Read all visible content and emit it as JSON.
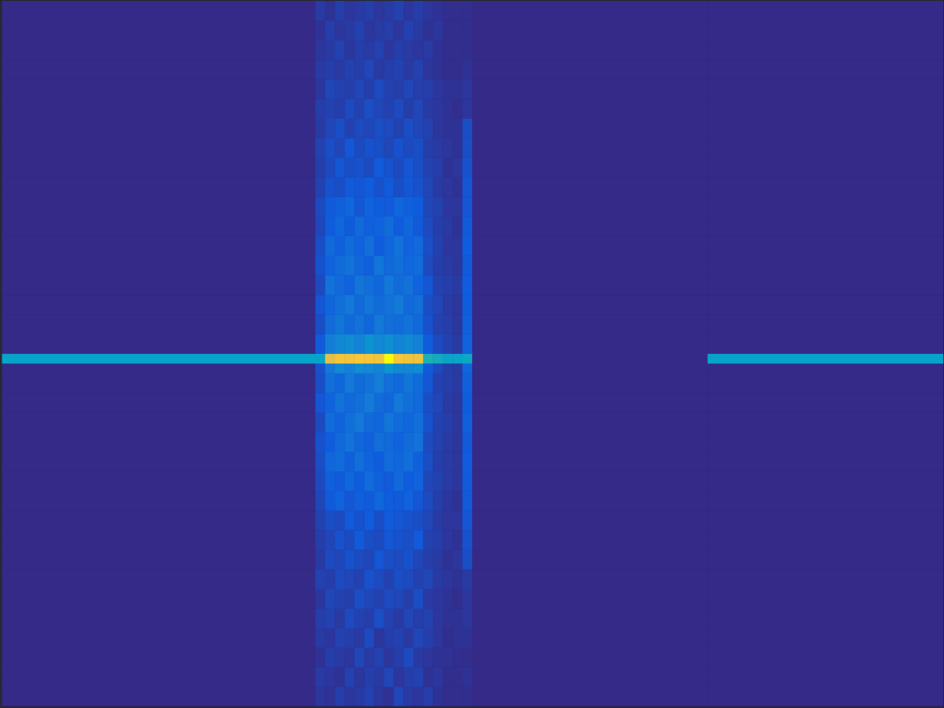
{
  "chart_data": {
    "type": "heatmap",
    "xlim": [
      0,
      96
    ],
    "ylim": [
      0,
      72
    ],
    "tick_labels": false,
    "zlim": [
      0,
      100
    ],
    "x_bins": [
      0,
      32,
      33,
      34,
      35,
      36,
      37,
      38,
      39,
      40,
      41,
      42,
      43,
      44,
      45,
      46,
      47,
      48,
      72,
      96
    ],
    "y_bins": [
      0,
      2,
      4,
      6,
      8,
      10,
      12,
      14,
      16,
      18,
      20,
      22,
      24,
      26,
      28,
      30,
      32,
      34,
      35,
      36,
      38,
      40,
      42,
      44,
      46,
      48,
      50,
      52,
      54,
      56,
      58,
      60,
      62,
      64,
      66,
      68,
      70,
      72
    ],
    "z": [
      [
        0,
        3,
        2,
        5,
        3,
        4,
        6,
        3,
        2,
        7,
        4,
        3,
        5,
        2,
        1,
        1,
        1,
        0,
        0
      ],
      [
        0,
        4,
        3,
        2,
        6,
        3,
        5,
        4,
        7,
        3,
        5,
        6,
        2,
        3,
        1,
        1,
        2,
        0,
        0
      ],
      [
        0,
        2,
        5,
        4,
        3,
        7,
        4,
        6,
        3,
        5,
        8,
        4,
        3,
        2,
        2,
        1,
        1,
        0,
        0
      ],
      [
        0,
        4,
        3,
        6,
        5,
        4,
        8,
        3,
        5,
        6,
        4,
        7,
        5,
        3,
        1,
        2,
        2,
        0,
        0
      ],
      [
        0,
        5,
        6,
        4,
        8,
        6,
        5,
        9,
        6,
        4,
        7,
        5,
        6,
        3,
        2,
        2,
        3,
        0,
        0
      ],
      [
        0,
        3,
        7,
        6,
        5,
        9,
        7,
        6,
        8,
        7,
        5,
        9,
        4,
        3,
        2,
        1,
        3,
        0,
        0
      ],
      [
        0,
        6,
        5,
        8,
        7,
        6,
        10,
        8,
        6,
        9,
        8,
        6,
        7,
        4,
        3,
        2,
        4,
        0,
        0
      ],
      [
        0,
        4,
        8,
        7,
        10,
        8,
        7,
        11,
        9,
        8,
        10,
        7,
        5,
        4,
        2,
        3,
        9,
        0,
        0
      ],
      [
        0,
        5,
        7,
        10,
        8,
        12,
        9,
        8,
        11,
        10,
        9,
        12,
        6,
        5,
        3,
        2,
        10,
        0,
        0
      ],
      [
        0,
        6,
        9,
        8,
        12,
        10,
        13,
        9,
        12,
        11,
        10,
        9,
        7,
        4,
        3,
        3,
        11,
        0,
        0
      ],
      [
        0,
        7,
        12,
        15,
        11,
        14,
        12,
        16,
        13,
        12,
        15,
        11,
        8,
        5,
        3,
        2,
        12,
        0,
        0
      ],
      [
        0,
        8,
        14,
        12,
        16,
        13,
        18,
        14,
        12,
        17,
        13,
        15,
        7,
        6,
        4,
        3,
        12,
        0,
        0
      ],
      [
        0,
        9,
        16,
        18,
        14,
        19,
        15,
        13,
        18,
        16,
        19,
        14,
        9,
        5,
        4,
        3,
        13,
        0,
        0
      ],
      [
        0,
        10,
        13,
        17,
        20,
        16,
        14,
        19,
        17,
        15,
        18,
        20,
        8,
        6,
        4,
        3,
        12,
        0,
        0
      ],
      [
        0,
        8,
        18,
        15,
        19,
        22,
        17,
        16,
        21,
        18,
        16,
        19,
        10,
        6,
        5,
        3,
        14,
        0,
        0
      ],
      [
        0,
        11,
        15,
        20,
        17,
        19,
        23,
        18,
        16,
        22,
        19,
        17,
        9,
        7,
        4,
        3,
        13,
        0,
        0
      ],
      [
        0,
        9,
        19,
        16,
        22,
        18,
        20,
        24,
        19,
        17,
        21,
        18,
        11,
        6,
        5,
        4,
        14,
        0,
        0
      ],
      [
        0,
        10,
        22,
        28,
        25,
        30,
        28,
        26,
        32,
        28,
        27,
        29,
        12,
        8,
        5,
        4,
        16,
        0,
        0
      ],
      [
        37,
        37,
        80,
        85,
        84,
        86,
        85,
        84,
        100,
        86,
        84,
        83,
        45,
        42,
        38,
        38,
        40,
        0,
        37
      ],
      [
        0,
        12,
        24,
        27,
        29,
        26,
        31,
        27,
        30,
        26,
        28,
        25,
        13,
        8,
        6,
        4,
        15,
        0,
        0
      ],
      [
        0,
        9,
        18,
        21,
        17,
        20,
        16,
        22,
        19,
        18,
        20,
        17,
        10,
        6,
        5,
        3,
        14,
        0,
        0
      ],
      [
        0,
        11,
        16,
        19,
        22,
        17,
        21,
        18,
        20,
        23,
        17,
        19,
        9,
        7,
        4,
        3,
        13,
        0,
        0
      ],
      [
        0,
        8,
        20,
        17,
        15,
        21,
        19,
        16,
        22,
        18,
        20,
        15,
        11,
        6,
        5,
        4,
        13,
        0,
        0
      ],
      [
        0,
        10,
        15,
        18,
        20,
        16,
        14,
        21,
        17,
        19,
        16,
        18,
        8,
        5,
        4,
        3,
        12,
        0,
        0
      ],
      [
        0,
        9,
        17,
        14,
        18,
        15,
        19,
        13,
        16,
        20,
        15,
        17,
        9,
        6,
        3,
        3,
        13,
        0,
        0
      ],
      [
        0,
        7,
        13,
        16,
        12,
        17,
        14,
        15,
        18,
        13,
        16,
        12,
        8,
        5,
        4,
        2,
        12,
        0,
        0
      ],
      [
        0,
        8,
        12,
        14,
        16,
        11,
        15,
        13,
        12,
        16,
        14,
        13,
        7,
        6,
        3,
        3,
        11,
        0,
        0
      ],
      [
        0,
        6,
        10,
        9,
        12,
        11,
        13,
        10,
        12,
        9,
        11,
        10,
        7,
        4,
        3,
        2,
        11,
        0,
        0
      ],
      [
        0,
        5,
        8,
        11,
        9,
        10,
        8,
        12,
        10,
        8,
        11,
        9,
        6,
        5,
        2,
        3,
        10,
        0,
        0
      ],
      [
        0,
        6,
        9,
        7,
        11,
        8,
        10,
        9,
        7,
        10,
        8,
        9,
        5,
        4,
        3,
        2,
        9,
        0,
        0
      ],
      [
        0,
        4,
        7,
        9,
        6,
        8,
        7,
        9,
        8,
        6,
        9,
        7,
        6,
        3,
        2,
        2,
        9,
        0,
        0
      ],
      [
        0,
        5,
        6,
        5,
        8,
        6,
        9,
        7,
        6,
        8,
        5,
        7,
        4,
        3,
        2,
        1,
        3,
        0,
        0
      ],
      [
        0,
        3,
        7,
        6,
        5,
        7,
        5,
        8,
        6,
        5,
        7,
        5,
        5,
        3,
        2,
        2,
        3,
        0,
        0
      ],
      [
        0,
        4,
        5,
        4,
        6,
        5,
        7,
        4,
        5,
        6,
        4,
        6,
        3,
        2,
        1,
        1,
        2,
        0,
        0
      ],
      [
        0,
        3,
        4,
        6,
        3,
        5,
        4,
        6,
        3,
        5,
        4,
        3,
        4,
        2,
        1,
        1,
        1,
        0,
        0
      ],
      [
        0,
        2,
        5,
        3,
        4,
        6,
        3,
        4,
        5,
        3,
        6,
        4,
        2,
        3,
        1,
        1,
        1,
        0,
        0
      ],
      [
        0,
        4,
        2,
        5,
        3,
        4,
        5,
        3,
        4,
        6,
        3,
        5,
        3,
        2,
        1,
        1,
        1,
        0,
        0
      ]
    ]
  }
}
